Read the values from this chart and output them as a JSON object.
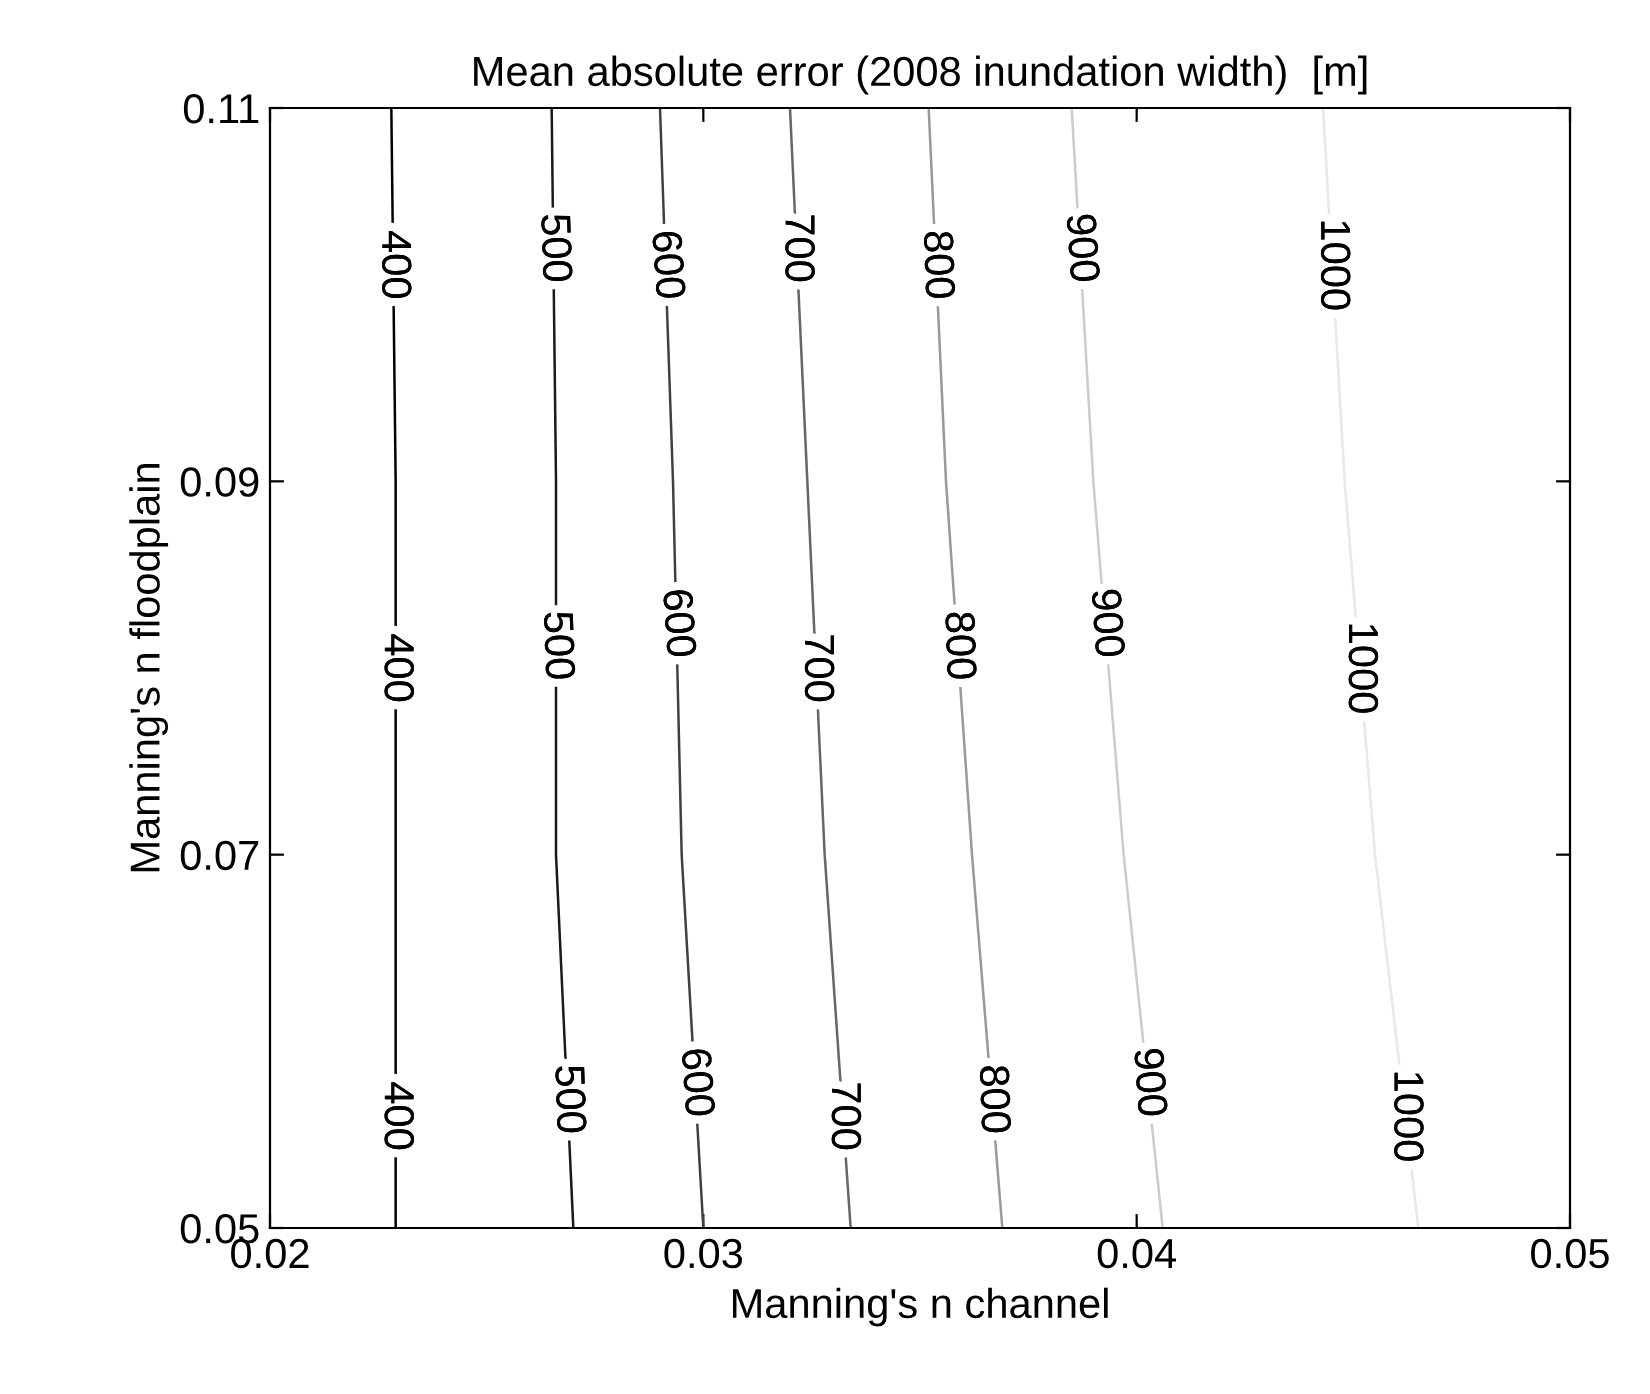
{
  "chart_data": {
    "type": "line",
    "title": "Mean absolute error (2008 inundation width)  [m]",
    "xlabel": "Manning's n channel",
    "ylabel": "Manning's n floodplain",
    "xlim": [
      0.02,
      0.05
    ],
    "ylim": [
      0.05,
      0.11
    ],
    "xticks": [
      0.02,
      0.03,
      0.04,
      0.05
    ],
    "yticks": [
      0.05,
      0.07,
      0.09,
      0.11
    ],
    "grid": false,
    "legend": false,
    "marker": "none",
    "line_style": "solid",
    "series": [
      {
        "name": "400",
        "color": "#000000",
        "x": [
          0.0229,
          0.0229,
          0.0229,
          0.0228
        ],
        "values": [
          0.05,
          0.07,
          0.09,
          0.11
        ]
      },
      {
        "name": "500",
        "color": "#1a1a1a",
        "x": [
          0.027,
          0.0266,
          0.0266,
          0.0265
        ],
        "values": [
          0.05,
          0.07,
          0.09,
          0.11
        ]
      },
      {
        "name": "600",
        "color": "#404040",
        "x": [
          0.03,
          0.0295,
          0.0293,
          0.029
        ],
        "values": [
          0.05,
          0.07,
          0.09,
          0.11
        ]
      },
      {
        "name": "700",
        "color": "#666666",
        "x": [
          0.0334,
          0.0328,
          0.0324,
          0.032
        ],
        "values": [
          0.05,
          0.07,
          0.09,
          0.11
        ]
      },
      {
        "name": "800",
        "color": "#999999",
        "x": [
          0.0369,
          0.0362,
          0.0356,
          0.0352
        ],
        "values": [
          0.05,
          0.07,
          0.09,
          0.11
        ]
      },
      {
        "name": "900",
        "color": "#cccccc",
        "x": [
          0.0406,
          0.0397,
          0.039,
          0.0385
        ],
        "values": [
          0.05,
          0.07,
          0.09,
          0.11
        ]
      },
      {
        "name": "1000",
        "color": "#e8e8e8",
        "x": [
          0.0465,
          0.0455,
          0.0448,
          0.0443
        ],
        "values": [
          0.05,
          0.07,
          0.09,
          0.11
        ]
      }
    ]
  }
}
